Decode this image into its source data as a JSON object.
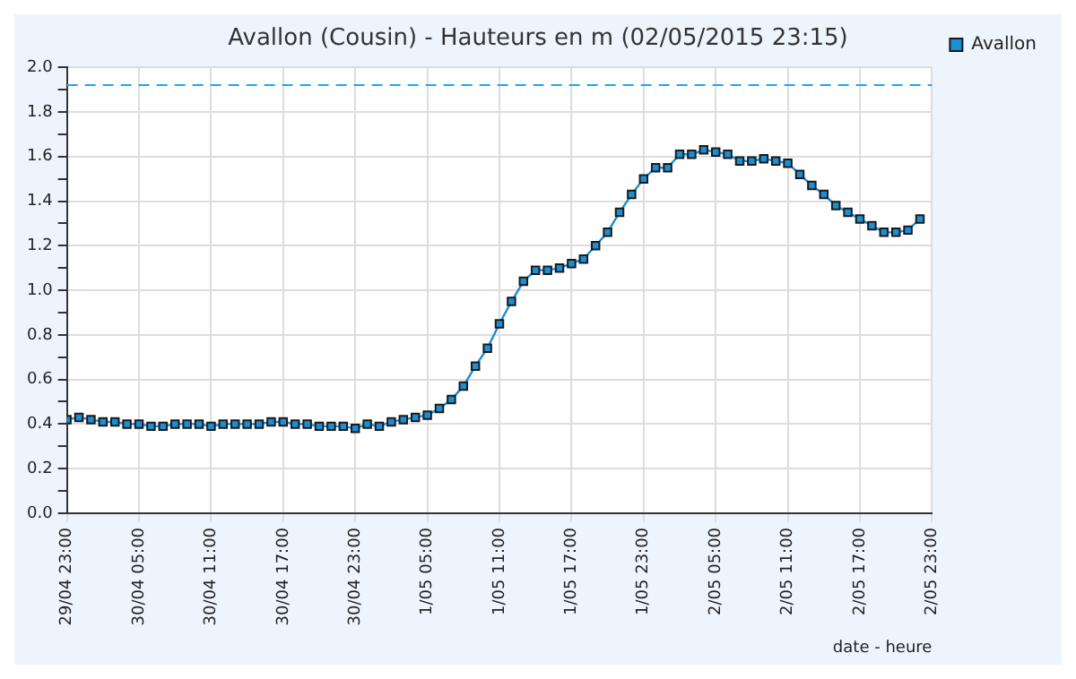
{
  "chart_data": {
    "type": "line",
    "title": "Avallon (Cousin) - Hauteurs en m (02/05/2015 23:15)",
    "xlabel": "date - heure",
    "x": [
      "2015-04-29T23:00",
      "2015-04-30T00:00",
      "2015-04-30T01:00",
      "2015-04-30T02:00",
      "2015-04-30T03:00",
      "2015-04-30T04:00",
      "2015-04-30T05:00",
      "2015-04-30T06:00",
      "2015-04-30T07:00",
      "2015-04-30T08:00",
      "2015-04-30T09:00",
      "2015-04-30T10:00",
      "2015-04-30T11:00",
      "2015-04-30T12:00",
      "2015-04-30T13:00",
      "2015-04-30T14:00",
      "2015-04-30T15:00",
      "2015-04-30T16:00",
      "2015-04-30T17:00",
      "2015-04-30T18:00",
      "2015-04-30T19:00",
      "2015-04-30T20:00",
      "2015-04-30T21:00",
      "2015-04-30T22:00",
      "2015-04-30T23:00",
      "2015-05-01T00:00",
      "2015-05-01T01:00",
      "2015-05-01T02:00",
      "2015-05-01T03:00",
      "2015-05-01T04:00",
      "2015-05-01T05:00",
      "2015-05-01T06:00",
      "2015-05-01T07:00",
      "2015-05-01T08:00",
      "2015-05-01T09:00",
      "2015-05-01T10:00",
      "2015-05-01T11:00",
      "2015-05-01T12:00",
      "2015-05-01T13:00",
      "2015-05-01T14:00",
      "2015-05-01T15:00",
      "2015-05-01T16:00",
      "2015-05-01T17:00",
      "2015-05-01T18:00",
      "2015-05-01T19:00",
      "2015-05-01T20:00",
      "2015-05-01T21:00",
      "2015-05-01T22:00",
      "2015-05-01T23:00",
      "2015-05-02T00:00",
      "2015-05-02T01:00",
      "2015-05-02T02:00",
      "2015-05-02T03:00",
      "2015-05-02T04:00",
      "2015-05-02T05:00",
      "2015-05-02T06:00",
      "2015-05-02T07:00",
      "2015-05-02T08:00",
      "2015-05-02T09:00",
      "2015-05-02T10:00",
      "2015-05-02T11:00",
      "2015-05-02T12:00",
      "2015-05-02T13:00",
      "2015-05-02T14:00",
      "2015-05-02T15:00",
      "2015-05-02T16:00",
      "2015-05-02T17:00",
      "2015-05-02T18:00",
      "2015-05-02T19:00",
      "2015-05-02T20:00",
      "2015-05-02T21:00",
      "2015-05-02T22:00"
    ],
    "series": [
      {
        "name": "Avallon",
        "color": "#1a8fd6",
        "values": [
          0.42,
          0.43,
          0.42,
          0.41,
          0.41,
          0.4,
          0.4,
          0.39,
          0.39,
          0.4,
          0.4,
          0.4,
          0.39,
          0.4,
          0.4,
          0.4,
          0.4,
          0.41,
          0.41,
          0.4,
          0.4,
          0.39,
          0.39,
          0.39,
          0.38,
          0.4,
          0.39,
          0.41,
          0.42,
          0.43,
          0.44,
          0.47,
          0.51,
          0.57,
          0.66,
          0.74,
          0.85,
          0.95,
          1.04,
          1.09,
          1.09,
          1.1,
          1.12,
          1.14,
          1.2,
          1.26,
          1.35,
          1.43,
          1.5,
          1.55,
          1.55,
          1.61,
          1.61,
          1.63,
          1.62,
          1.61,
          1.58,
          1.58,
          1.59,
          1.58,
          1.57,
          1.52,
          1.47,
          1.43,
          1.38,
          1.35,
          1.32,
          1.29,
          1.26,
          1.26,
          1.27,
          1.32
        ]
      }
    ],
    "xlim": [
      "2015-04-29T23:00",
      "2015-05-02T23:00"
    ],
    "xticks": [
      {
        "value": "2015-04-29T23:00",
        "label": "29/04 23:00"
      },
      {
        "value": "2015-04-30T05:00",
        "label": "30/04 05:00"
      },
      {
        "value": "2015-04-30T11:00",
        "label": "30/04 11:00"
      },
      {
        "value": "2015-04-30T17:00",
        "label": "30/04 17:00"
      },
      {
        "value": "2015-04-30T23:00",
        "label": "30/04 23:00"
      },
      {
        "value": "2015-05-01T05:00",
        "label": "1/05 05:00"
      },
      {
        "value": "2015-05-01T11:00",
        "label": "1/05 11:00"
      },
      {
        "value": "2015-05-01T17:00",
        "label": "1/05 17:00"
      },
      {
        "value": "2015-05-01T23:00",
        "label": "1/05 23:00"
      },
      {
        "value": "2015-05-02T05:00",
        "label": "2/05 05:00"
      },
      {
        "value": "2015-05-02T11:00",
        "label": "2/05 11:00"
      },
      {
        "value": "2015-05-02T17:00",
        "label": "2/05 17:00"
      },
      {
        "value": "2015-05-02T23:00",
        "label": "2/05 23:00"
      }
    ],
    "ylim": [
      0,
      2
    ],
    "yticks": [
      {
        "value": 0,
        "label": "0.0"
      },
      {
        "value": 0.1,
        "label": null
      },
      {
        "value": 0.2,
        "label": "0.2"
      },
      {
        "value": 0.3,
        "label": null
      },
      {
        "value": 0.4,
        "label": "0.4"
      },
      {
        "value": 0.5,
        "label": null
      },
      {
        "value": 0.6,
        "label": "0.6"
      },
      {
        "value": 0.7,
        "label": null
      },
      {
        "value": 0.8,
        "label": "0.8"
      },
      {
        "value": 0.9,
        "label": null
      },
      {
        "value": 1.0,
        "label": "1.0"
      },
      {
        "value": 1.1,
        "label": null
      },
      {
        "value": 1.2,
        "label": "1.2"
      },
      {
        "value": 1.3,
        "label": null
      },
      {
        "value": 1.4,
        "label": "1.4"
      },
      {
        "value": 1.5,
        "label": null
      },
      {
        "value": 1.6,
        "label": "1.6"
      },
      {
        "value": 1.7,
        "label": null
      },
      {
        "value": 1.8,
        "label": "1.8"
      },
      {
        "value": 1.9,
        "label": null
      },
      {
        "value": 2.0,
        "label": "2.0"
      }
    ],
    "ref_lines": [
      {
        "axis": "y",
        "value": 1.92,
        "color": "#1aa8f0",
        "line_style": "dashed"
      }
    ],
    "grid": true,
    "legend": "top right",
    "marker": "square",
    "line_style": "solid"
  }
}
